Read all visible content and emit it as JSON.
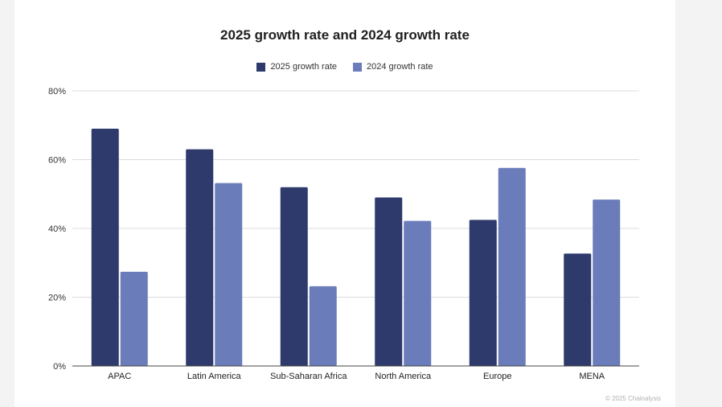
{
  "chart_data": {
    "type": "bar",
    "title": "2025 growth rate and 2024 growth rate",
    "xlabel": "",
    "ylabel": "",
    "categories": [
      "APAC",
      "Latin America",
      "Sub-Saharan Africa",
      "North America",
      "Europe",
      "MENA"
    ],
    "series": [
      {
        "name": "2025 growth rate",
        "color": "#2d3a6b",
        "values": [
          69,
          63,
          52,
          49,
          42.5,
          32.7
        ]
      },
      {
        "name": "2024 growth rate",
        "color": "#6a7cba",
        "values": [
          27.4,
          53.2,
          23.2,
          42.2,
          57.6,
          48.4
        ]
      }
    ],
    "ylim": [
      0,
      80
    ],
    "yticks": [
      0,
      20,
      40,
      60,
      80
    ],
    "ytick_labels": [
      "0%",
      "20%",
      "40%",
      "60%",
      "80%"
    ],
    "grid": true,
    "legend_position": "top-center"
  },
  "footer": {
    "credit": "© 2025 Chainalysis"
  }
}
